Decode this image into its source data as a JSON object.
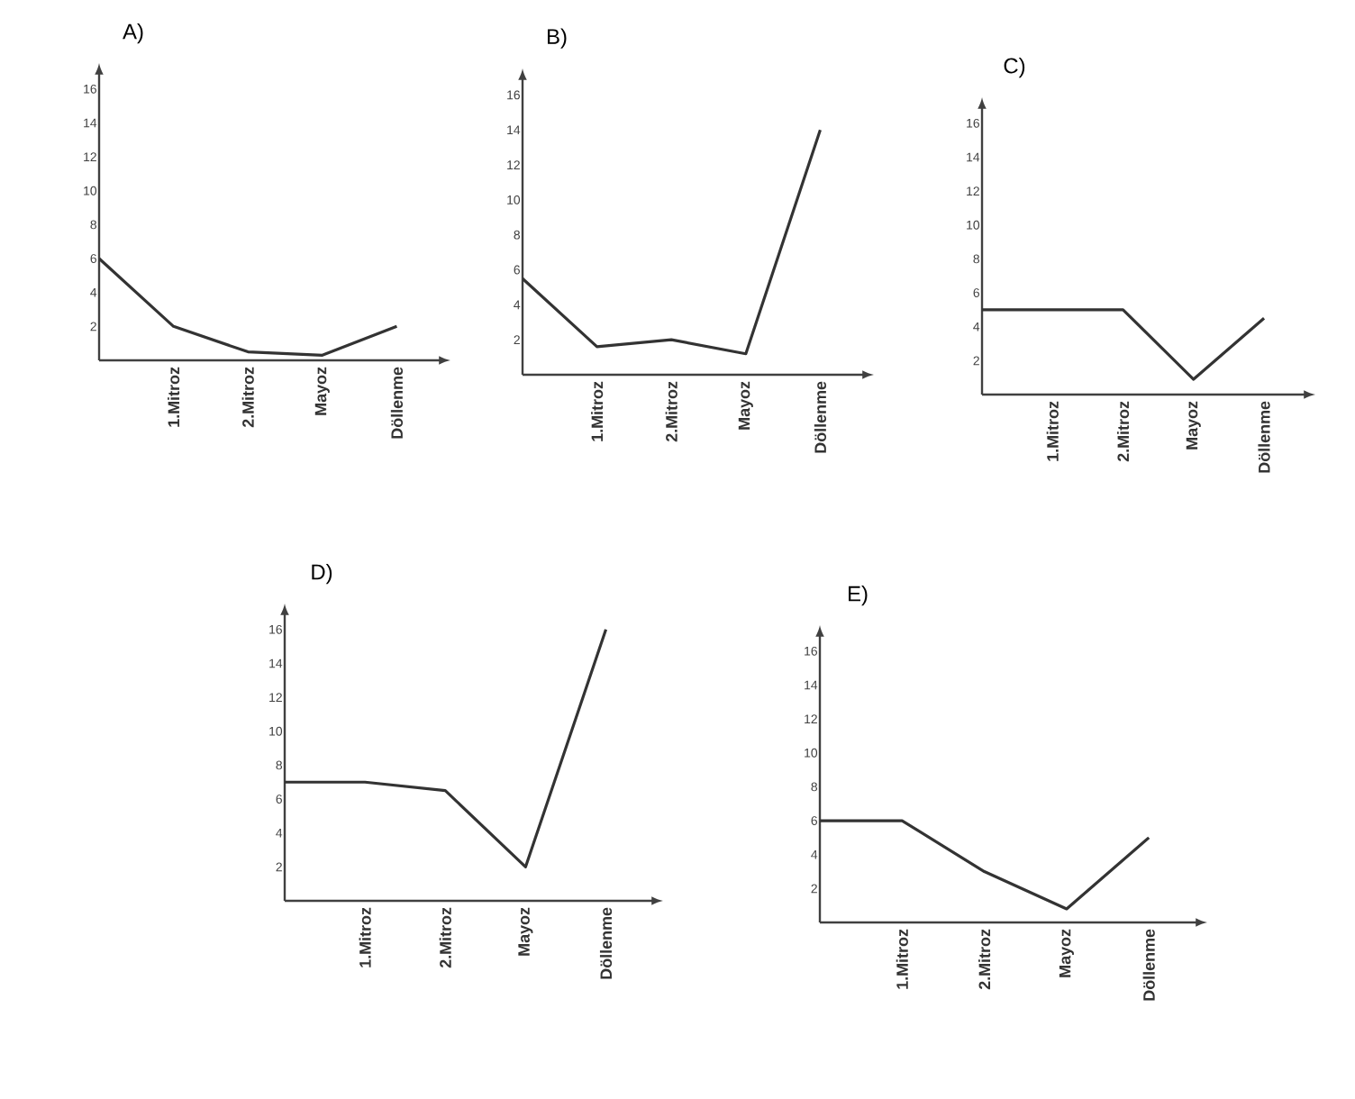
{
  "chart_data": [
    {
      "type": "line",
      "title": "A)",
      "categories": [
        null,
        "1.Mitroz",
        "2.Mitroz",
        "Mayoz",
        "Döllenme"
      ],
      "values": [
        6,
        2,
        0.5,
        0.3,
        2
      ],
      "color": "#333333",
      "ylim": [
        0,
        17
      ],
      "yticks": [
        2,
        4,
        6,
        8,
        10,
        12,
        14,
        16
      ]
    },
    {
      "type": "line",
      "title": "B)",
      "categories": [
        null,
        "1.Mitroz",
        "2.Mitroz",
        "Mayoz",
        "Döllenme"
      ],
      "values": [
        5.5,
        1.6,
        2,
        1.2,
        14
      ],
      "color": "#333333",
      "ylim": [
        0,
        17
      ],
      "yticks": [
        2,
        4,
        6,
        8,
        10,
        12,
        14,
        16
      ]
    },
    {
      "type": "line",
      "title": "C)",
      "categories": [
        null,
        "1.Mitroz",
        "2.Mitroz",
        "Mayoz",
        "Döllenme"
      ],
      "values": [
        5,
        5,
        5,
        0.9,
        4.5
      ],
      "color": "#333333",
      "ylim": [
        0,
        17
      ],
      "yticks": [
        2,
        4,
        6,
        8,
        10,
        12,
        14,
        16
      ]
    },
    {
      "type": "line",
      "title": "D)",
      "categories": [
        null,
        "1.Mitroz",
        "2.Mitroz",
        "Mayoz",
        "Döllenme"
      ],
      "values": [
        7,
        7,
        6.5,
        2,
        16
      ],
      "color": "#333333",
      "ylim": [
        0,
        17
      ],
      "yticks": [
        2,
        4,
        6,
        8,
        10,
        12,
        14,
        16
      ]
    },
    {
      "type": "line",
      "title": "E)",
      "categories": [
        null,
        "1.Mitroz",
        "2.Mitroz",
        "Mayoz",
        "Döllenme"
      ],
      "values": [
        6,
        6,
        3,
        0.8,
        5
      ],
      "color": "#333333",
      "ylim": [
        0,
        17
      ],
      "yticks": [
        2,
        4,
        6,
        8,
        10,
        12,
        14,
        16
      ]
    }
  ]
}
